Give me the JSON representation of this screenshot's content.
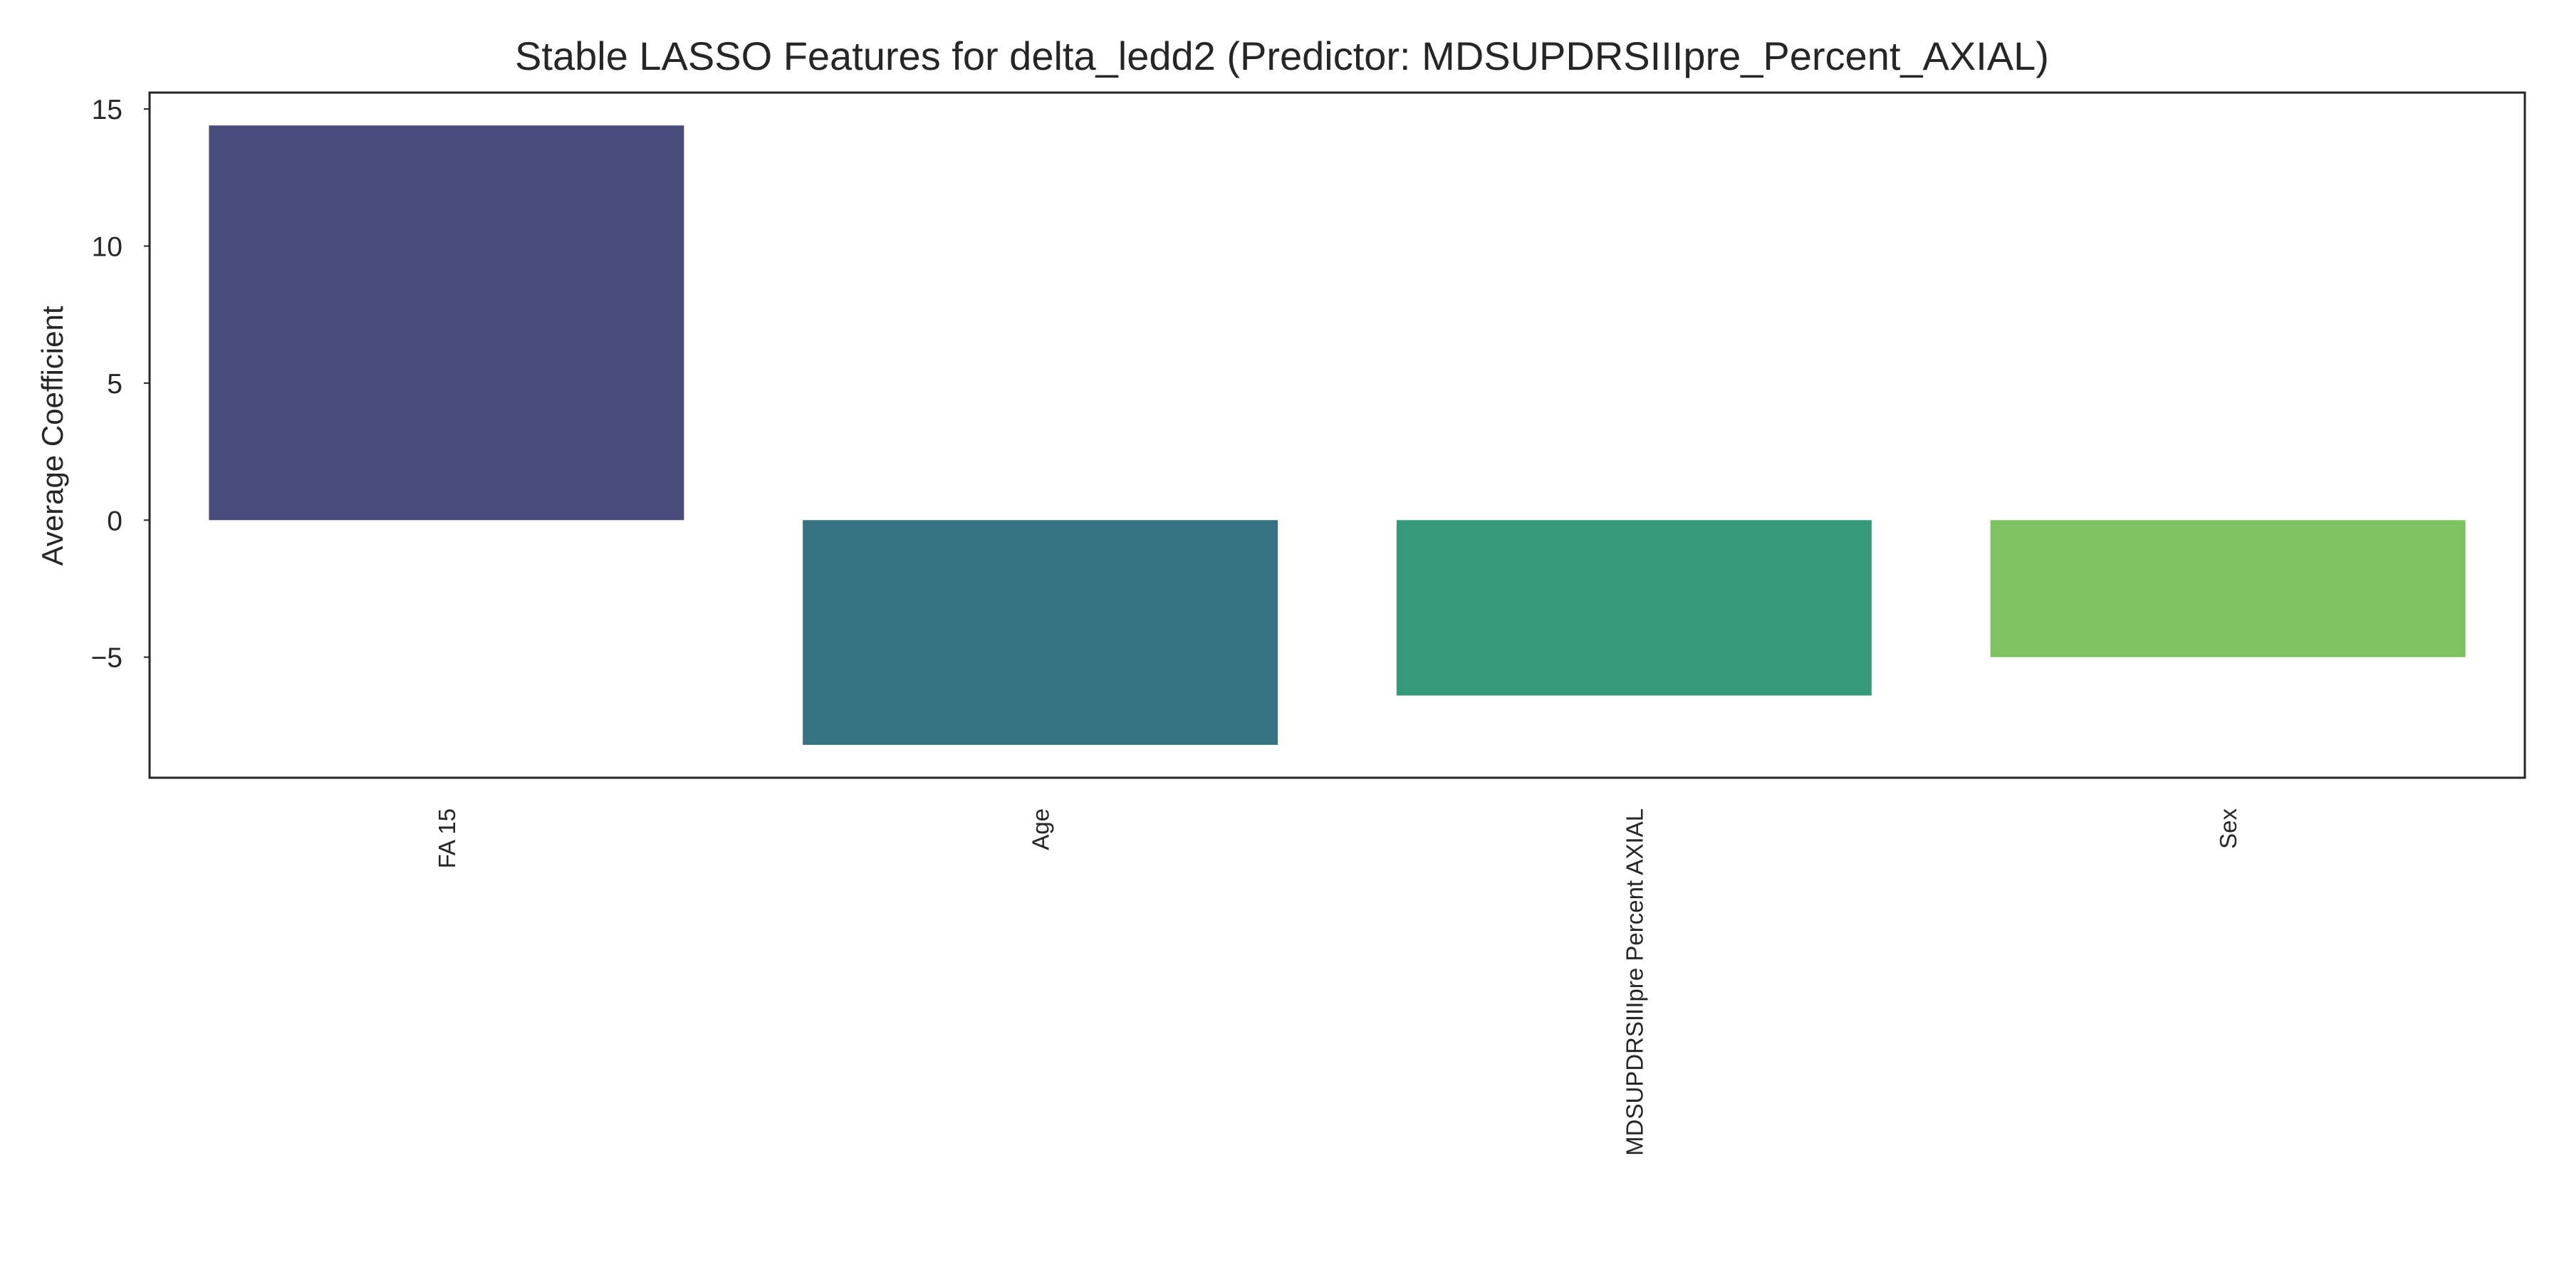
{
  "chart_data": {
    "type": "bar",
    "title": "Stable LASSO Features for delta_ledd2 (Predictor: MDSUPDRSIIIpre_Percent_AXIAL)",
    "xlabel": "",
    "ylabel": "Average Coefficient",
    "categories": [
      "FA 15",
      "Age",
      "MDSUPDRSIIIpre Percent AXIAL",
      "Sex"
    ],
    "values": [
      14.4,
      -8.2,
      -6.4,
      -5.0
    ],
    "colors": [
      "#4a4c7c",
      "#367280",
      "#36997c",
      "#7fc262"
    ],
    "ylim": [
      -9.4,
      15.6
    ],
    "yticks": [
      -5,
      0,
      5,
      10,
      15
    ],
    "ytick_labels": [
      "−5",
      "0",
      "5",
      "10",
      "15"
    ],
    "grid": false,
    "legend": "none"
  }
}
